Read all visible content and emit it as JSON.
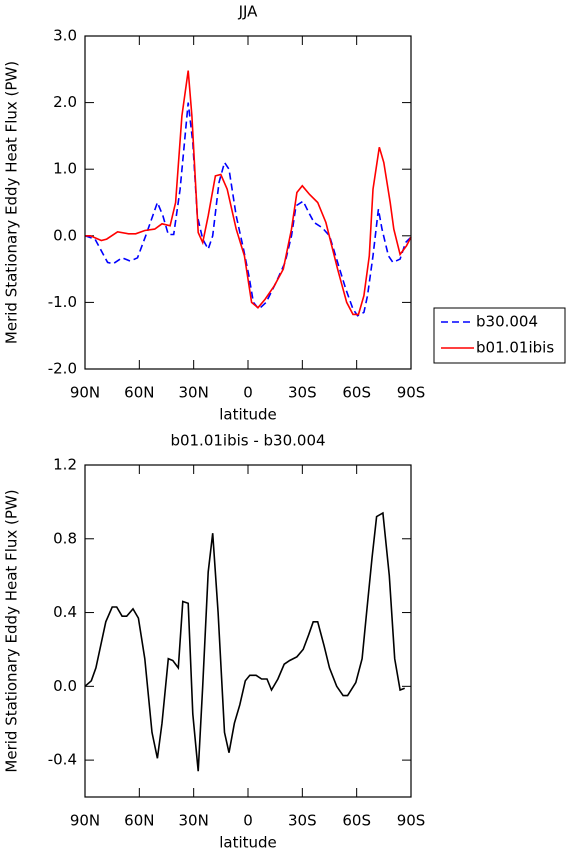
{
  "chart_data": [
    {
      "type": "line",
      "title": "JJA",
      "xlabel": "latitude",
      "ylabel": "Merid Stationary Eddy Heat Flux (PW)",
      "xlim": [
        90,
        -90
      ],
      "xticks": [
        {
          "value": 90,
          "label": "90N"
        },
        {
          "value": 60,
          "label": "60N"
        },
        {
          "value": 30,
          "label": "30N"
        },
        0,
        {
          "value": -30,
          "label": "30S"
        },
        {
          "value": -60,
          "label": "60S"
        },
        {
          "value": -90,
          "label": "90S"
        }
      ],
      "ylim": [
        -2.0,
        3.0
      ],
      "yticks": [
        {
          "value": 3.0,
          "label": "3.0"
        },
        {
          "value": 2.0,
          "label": "2.0"
        },
        {
          "value": 1.0,
          "label": "1.0"
        },
        {
          "value": 0.0,
          "label": "0.0"
        },
        {
          "value": -1.0,
          "label": "-1.0"
        },
        {
          "value": -2.0,
          "label": "-2.0"
        }
      ],
      "legend": "outside-right",
      "series": [
        {
          "name": "b30.004",
          "color": "#0000ff",
          "style": "dashed",
          "x": [
            90,
            84.5,
            77.5,
            74.5,
            69.5,
            65,
            61,
            56.5,
            50,
            47,
            44,
            41,
            37.5,
            33,
            30.5,
            28,
            25,
            22,
            19.5,
            16,
            13,
            10.5,
            6.5,
            2.5,
            -0.5,
            -3,
            -6,
            -10,
            -15.5,
            -20.5,
            -24,
            -26.5,
            -30.5,
            -33.5,
            -36.5,
            -41,
            -45,
            -49.5,
            -54,
            -58,
            -60.5,
            -64,
            -66,
            -69,
            -72,
            -74,
            -77.5,
            -80,
            -84,
            -87,
            -90
          ],
          "values": [
            0.0,
            -0.05,
            -0.4,
            -0.42,
            -0.33,
            -0.38,
            -0.33,
            0.0,
            0.5,
            0.3,
            0.02,
            0.02,
            0.7,
            2.0,
            1.4,
            0.3,
            -0.05,
            -0.2,
            0.0,
            0.8,
            1.1,
            1.0,
            0.3,
            -0.2,
            -0.6,
            -1.0,
            -1.1,
            -1.0,
            -0.7,
            -0.4,
            0.0,
            0.45,
            0.52,
            0.35,
            0.2,
            0.12,
            0.0,
            -0.4,
            -0.8,
            -1.1,
            -1.2,
            -1.15,
            -0.9,
            -0.3,
            0.4,
            0.1,
            -0.3,
            -0.4,
            -0.35,
            -0.1,
            -0.02
          ]
        },
        {
          "name": "b01.01ibis",
          "color": "#ff0000",
          "style": "solid",
          "x": [
            90,
            87,
            81,
            78,
            72,
            66,
            62,
            57,
            51.5,
            47.5,
            43,
            40,
            36.5,
            33,
            31,
            27.5,
            25,
            22,
            18,
            15,
            11.5,
            6.5,
            2,
            -2,
            -5.5,
            -9.5,
            -14.5,
            -19.5,
            -24,
            -27,
            -30,
            -34,
            -38.5,
            -43,
            -49.5,
            -54.5,
            -58,
            -61,
            -64,
            -67,
            -69,
            -72.5,
            -75,
            -78.5,
            -80.5,
            -84,
            -87.5,
            -90
          ],
          "values": [
            0.0,
            0.0,
            -0.07,
            -0.05,
            0.06,
            0.03,
            0.03,
            0.08,
            0.1,
            0.18,
            0.15,
            0.5,
            1.8,
            2.48,
            1.8,
            0.05,
            -0.1,
            0.3,
            0.9,
            0.92,
            0.7,
            0.1,
            -0.3,
            -1.0,
            -1.08,
            -0.95,
            -0.75,
            -0.5,
            0.1,
            0.65,
            0.75,
            0.62,
            0.5,
            0.2,
            -0.5,
            -1.0,
            -1.18,
            -1.18,
            -0.9,
            -0.3,
            0.7,
            1.33,
            1.1,
            0.5,
            0.1,
            -0.28,
            -0.15,
            -0.02
          ]
        }
      ]
    },
    {
      "type": "line",
      "title": "b01.01ibis - b30.004",
      "xlabel": "latitude",
      "ylabel": "Merid Stationary Eddy Heat Flux (PW)",
      "xlim": [
        90,
        -90
      ],
      "xticks": [
        {
          "value": 90,
          "label": "90N"
        },
        {
          "value": 60,
          "label": "60N"
        },
        {
          "value": 30,
          "label": "30N"
        },
        0,
        {
          "value": -30,
          "label": "30S"
        },
        {
          "value": -60,
          "label": "60S"
        },
        {
          "value": -90,
          "label": "90S"
        }
      ],
      "ylim": [
        -0.6,
        1.2
      ],
      "yticks": [
        1.2,
        0.8,
        0.4,
        {
          "value": 0.0,
          "label": "0.0"
        },
        -0.4
      ],
      "series": [
        {
          "color": "#000000",
          "style": "solid",
          "x": [
            90,
            86.5,
            84,
            78.5,
            75,
            72.5,
            69.5,
            67,
            63.5,
            60.5,
            57,
            53,
            50,
            47.5,
            44,
            41.5,
            38.5,
            36,
            33,
            30.5,
            27.5,
            25,
            22,
            19.5,
            16.5,
            13,
            10.5,
            7.5,
            4.5,
            1.5,
            -1,
            -4.5,
            -7.5,
            -10.5,
            -13,
            -16.5,
            -20,
            -23,
            -27,
            -30.5,
            -33.5,
            -36,
            -38.5,
            -42,
            -45,
            -49,
            -52.5,
            -55,
            -59.5,
            -63,
            -65.5,
            -68.5,
            -71,
            -74.5,
            -78,
            -81,
            -84,
            -86.5
          ],
          "values": [
            0.0,
            0.03,
            0.1,
            0.35,
            0.43,
            0.43,
            0.38,
            0.38,
            0.42,
            0.37,
            0.15,
            -0.25,
            -0.39,
            -0.2,
            0.15,
            0.14,
            0.1,
            0.46,
            0.45,
            -0.15,
            -0.46,
            0.0,
            0.62,
            0.83,
            0.4,
            -0.25,
            -0.36,
            -0.2,
            -0.1,
            0.03,
            0.06,
            0.06,
            0.04,
            0.04,
            -0.02,
            0.04,
            0.12,
            0.14,
            0.16,
            0.2,
            0.28,
            0.35,
            0.35,
            0.22,
            0.1,
            0.0,
            -0.05,
            -0.05,
            0.02,
            0.15,
            0.4,
            0.7,
            0.92,
            0.94,
            0.6,
            0.15,
            -0.02,
            -0.01
          ]
        }
      ]
    }
  ]
}
